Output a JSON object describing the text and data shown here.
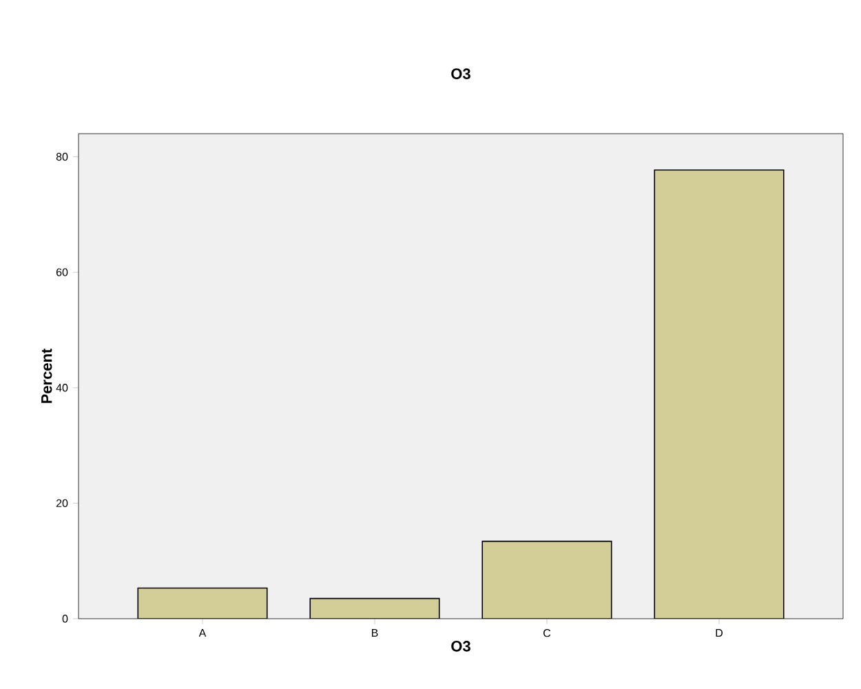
{
  "chart_data": {
    "type": "bar",
    "title": "O3",
    "xlabel": "O3",
    "ylabel": "Percent",
    "categories": [
      "A",
      "B",
      "C",
      "D"
    ],
    "values": [
      5.3,
      3.5,
      13.4,
      77.7
    ],
    "color": "#d3ce97",
    "ylim": [
      0,
      84
    ],
    "yticks": [
      0,
      20,
      40,
      60,
      80
    ],
    "grid": false
  }
}
